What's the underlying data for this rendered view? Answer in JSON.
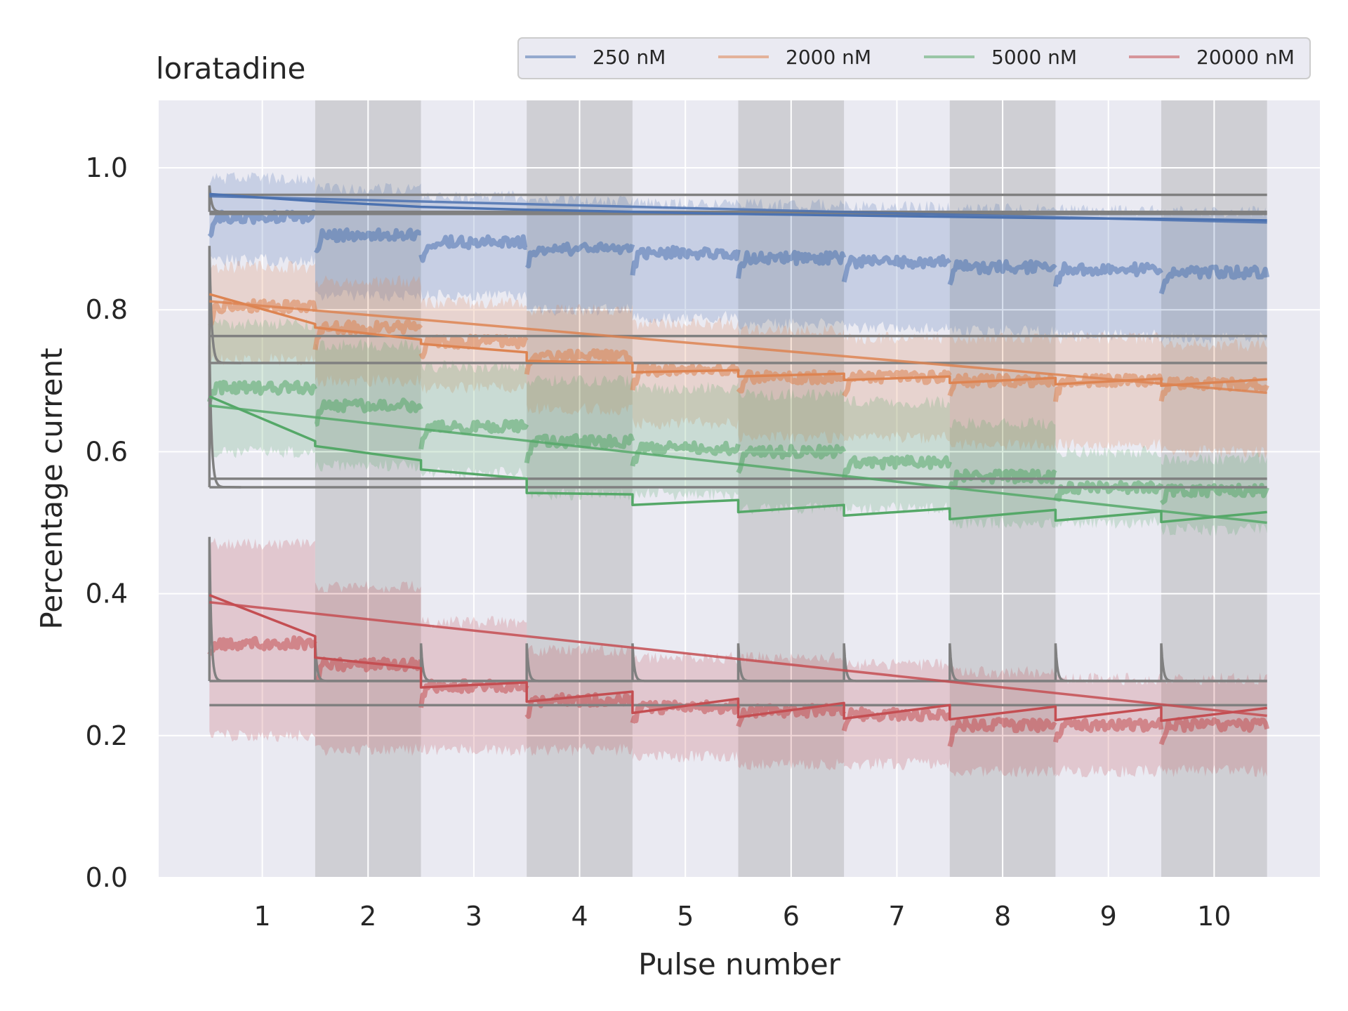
{
  "chart_data": {
    "type": "line",
    "title": "loratadine",
    "xlabel": "Pulse number",
    "ylabel": "Percentage current",
    "xlim": [
      0.02,
      11.0
    ],
    "ylim": [
      0.0,
      1.095
    ],
    "xticks": [
      1,
      2,
      3,
      4,
      5,
      6,
      7,
      8,
      9,
      10
    ],
    "xtick_labels": [
      "1",
      "2",
      "3",
      "4",
      "5",
      "6",
      "7",
      "8",
      "9",
      "10"
    ],
    "yticks": [
      0.0,
      0.2,
      0.4,
      0.6,
      0.8,
      1.0
    ],
    "ytick_labels": [
      "0.0",
      "0.2",
      "0.4",
      "0.6",
      "0.8",
      "1.0"
    ],
    "grid": true,
    "legend_position": "top-right",
    "pulse_boundaries": [
      0.5,
      1.5,
      2.5,
      3.5,
      4.5,
      5.5,
      6.5,
      7.5,
      8.5,
      9.5,
      10.5
    ],
    "shaded_pulses": [
      2,
      4,
      6,
      8,
      10
    ],
    "series": [
      {
        "name": "250 nM",
        "color": "#4c72b0",
        "data_mean": [
          0.93,
          0.905,
          0.895,
          0.885,
          0.88,
          0.873,
          0.867,
          0.86,
          0.857,
          0.853
        ],
        "data_band": [
          [
            0.87,
            0.985
          ],
          [
            0.82,
            0.97
          ],
          [
            0.82,
            0.96
          ],
          [
            0.8,
            0.955
          ],
          [
            0.79,
            0.95
          ],
          [
            0.78,
            0.948
          ],
          [
            0.775,
            0.945
          ],
          [
            0.77,
            0.942
          ],
          [
            0.765,
            0.94
          ],
          [
            0.76,
            0.938
          ]
        ],
        "fit_start": [
          0.963,
          0.953,
          0.945,
          0.941,
          0.938,
          0.935,
          0.933,
          0.931,
          0.929,
          0.928
        ],
        "fit_end": [
          0.953,
          0.945,
          0.941,
          0.938,
          0.935,
          0.933,
          0.931,
          0.929,
          0.928,
          0.926
        ],
        "fit_line": [
          [
            0.5,
            0.96
          ],
          [
            10.5,
            0.923
          ]
        ]
      },
      {
        "name": "2000 nM",
        "color": "#dd8452",
        "data_mean": [
          0.805,
          0.775,
          0.755,
          0.735,
          0.715,
          0.705,
          0.705,
          0.7,
          0.7,
          0.695
        ],
        "data_band": [
          [
            0.73,
            0.86
          ],
          [
            0.7,
            0.84
          ],
          [
            0.69,
            0.81
          ],
          [
            0.66,
            0.8
          ],
          [
            0.64,
            0.78
          ],
          [
            0.62,
            0.77
          ],
          [
            0.62,
            0.76
          ],
          [
            0.61,
            0.76
          ],
          [
            0.61,
            0.76
          ],
          [
            0.6,
            0.75
          ]
        ],
        "fit_start": [
          0.822,
          0.775,
          0.752,
          0.728,
          0.712,
          0.706,
          0.701,
          0.697,
          0.695,
          0.693
        ],
        "fit_end": [
          0.78,
          0.758,
          0.74,
          0.725,
          0.715,
          0.71,
          0.706,
          0.704,
          0.703,
          0.702
        ],
        "fit_line": [
          [
            0.5,
            0.812
          ],
          [
            10.5,
            0.683
          ]
        ]
      },
      {
        "name": "5000 nM",
        "color": "#55a868",
        "data_mean": [
          0.69,
          0.665,
          0.635,
          0.615,
          0.605,
          0.6,
          0.585,
          0.565,
          0.55,
          0.545
        ],
        "data_band": [
          [
            0.6,
            0.78
          ],
          [
            0.58,
            0.75
          ],
          [
            0.57,
            0.72
          ],
          [
            0.54,
            0.7
          ],
          [
            0.54,
            0.69
          ],
          [
            0.52,
            0.68
          ],
          [
            0.52,
            0.67
          ],
          [
            0.5,
            0.64
          ],
          [
            0.5,
            0.6
          ],
          [
            0.49,
            0.59
          ]
        ],
        "fit_start": [
          0.678,
          0.608,
          0.575,
          0.542,
          0.525,
          0.515,
          0.51,
          0.505,
          0.503,
          0.501
        ],
        "fit_end": [
          0.615,
          0.588,
          0.562,
          0.54,
          0.532,
          0.525,
          0.52,
          0.518,
          0.516,
          0.515
        ],
        "fit_line": [
          [
            0.5,
            0.665
          ],
          [
            10.5,
            0.5
          ]
        ]
      },
      {
        "name": "20000 nM",
        "color": "#c44e52",
        "data_mean": [
          0.33,
          0.3,
          0.27,
          0.25,
          0.24,
          0.235,
          0.23,
          0.215,
          0.215,
          0.215
        ],
        "data_band": [
          [
            0.2,
            0.47
          ],
          [
            0.18,
            0.41
          ],
          [
            0.18,
            0.36
          ],
          [
            0.18,
            0.32
          ],
          [
            0.17,
            0.31
          ],
          [
            0.16,
            0.31
          ],
          [
            0.16,
            0.3
          ],
          [
            0.15,
            0.29
          ],
          [
            0.15,
            0.28
          ],
          [
            0.15,
            0.28
          ]
        ],
        "fit_start": [
          0.398,
          0.31,
          0.268,
          0.248,
          0.232,
          0.226,
          0.224,
          0.223,
          0.222,
          0.221
        ],
        "fit_end": [
          0.34,
          0.295,
          0.275,
          0.262,
          0.252,
          0.246,
          0.243,
          0.241,
          0.24,
          0.239
        ],
        "fit_line": [
          [
            0.5,
            0.388
          ],
          [
            10.5,
            0.228
          ]
        ]
      }
    ],
    "reference_lines": {
      "color": "#808080",
      "horizontal": [
        0.962,
        0.938,
        0.935,
        0.763,
        0.725,
        0.562,
        0.55,
        0.277,
        0.243
      ],
      "spike_model": {
        "steady": 0.277,
        "first_peak": 0.48,
        "peak": 0.33
      },
      "first_transients": [
        {
          "peak": 0.975,
          "steady": 0.938
        },
        {
          "peak": 0.89,
          "steady": 0.725
        },
        {
          "peak": 0.75,
          "steady": 0.55
        }
      ]
    }
  }
}
